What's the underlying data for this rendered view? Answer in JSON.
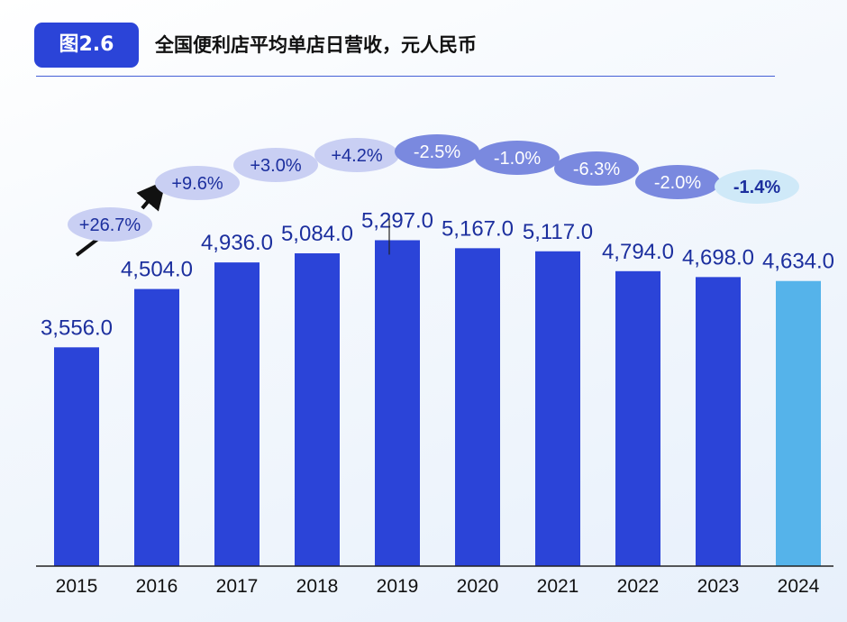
{
  "header": {
    "badge": "图2.6",
    "title": "全国便利店平均单店日营收，元人民币"
  },
  "colors": {
    "bar": "#2b44d8",
    "highlight_bar": "#55b3ea",
    "label": "#1c2f9e"
  },
  "chart_data": {
    "type": "bar",
    "title": "全国便利店平均单店日营收，元人民币",
    "categories": [
      "2015",
      "2016",
      "2017",
      "2018",
      "2019",
      "2020",
      "2021",
      "2022",
      "2023",
      "2024"
    ],
    "values": [
      3556.0,
      4504.0,
      4936.0,
      5084.0,
      5297.0,
      5167.0,
      5117.0,
      4794.0,
      4698.0,
      4634.0
    ],
    "value_labels": [
      "3,556.0",
      "4,504.0",
      "4,936.0",
      "5,084.0",
      "5,297.0",
      "5,167.0",
      "5,117.0",
      "4,794.0",
      "4,698.0",
      "4,634.0"
    ],
    "growth_labels": [
      "+26.7%",
      "+9.6%",
      "+3.0%",
      "+4.2%",
      "-2.5%",
      "-1.0%",
      "-6.3%",
      "-2.0%",
      "-1.4%"
    ],
    "highlighted_category": "2024",
    "ylim": [
      0,
      6000
    ],
    "grid": false
  }
}
